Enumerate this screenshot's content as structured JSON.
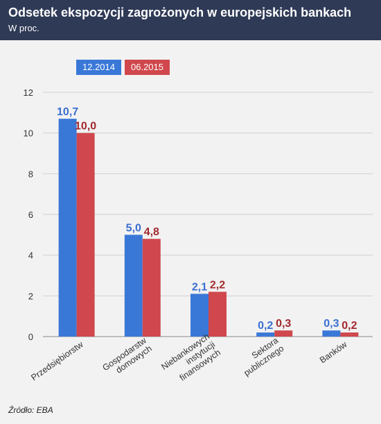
{
  "title": "Odsetek ekspozycji zagrożonych w europejskich bankach",
  "subtitle": "W proc.",
  "source": "Źródło: EBA",
  "colors": {
    "series1": "#3a78d8",
    "series2": "#d0484d",
    "label1": "#3a6fd0",
    "label2": "#a2292e",
    "header": "#2f3a56"
  },
  "chart_data": {
    "type": "bar",
    "categories": [
      [
        "Przedsiębiorstw"
      ],
      [
        "Gospodarstw",
        "domowych"
      ],
      [
        "Niebankowych",
        "instytucji",
        "finansowych"
      ],
      [
        "Sektora",
        "publicznego"
      ],
      [
        "Banków"
      ]
    ],
    "series": [
      {
        "name": "12.2014",
        "values": [
          10.7,
          5.0,
          2.1,
          0.2,
          0.3
        ],
        "labels": [
          "10,7",
          "5,0",
          "2,1",
          "0,2",
          "0,3"
        ]
      },
      {
        "name": "06.2015",
        "values": [
          10.0,
          4.8,
          2.2,
          0.3,
          0.2
        ],
        "labels": [
          "10,0",
          "4,8",
          "2,2",
          "0,3",
          "0,2"
        ]
      }
    ],
    "ylim": [
      0,
      12
    ],
    "yticks": [
      0,
      2,
      4,
      6,
      8,
      10,
      12
    ],
    "grid": true,
    "legend": "top-left"
  }
}
